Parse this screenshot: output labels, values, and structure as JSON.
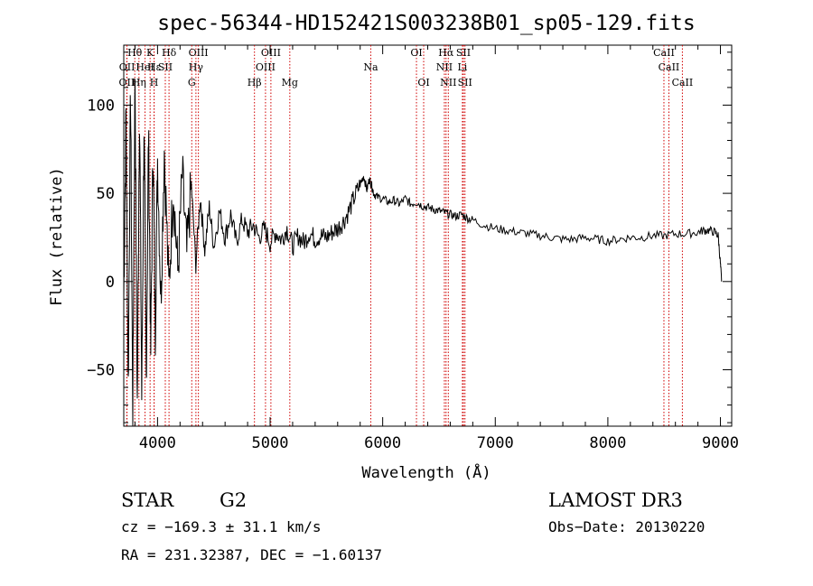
{
  "chart_data": {
    "type": "line",
    "title": "spec-56344-HD152421S003238B01_sp05-129.fits",
    "xlabel": "Wavelength (Å)",
    "ylabel": "Flux (relative)",
    "xlim": [
      3700,
      9100
    ],
    "ylim": [
      -82,
      134
    ],
    "xticks": [
      4000,
      5000,
      6000,
      7000,
      8000,
      9000
    ],
    "yticks": [
      -50,
      0,
      50,
      100
    ],
    "tick_labels_y": [
      "−50",
      "0",
      "50",
      "100"
    ],
    "series": [
      {
        "name": "spectrum",
        "x": [
          3700,
          3720,
          3740,
          3760,
          3780,
          3800,
          3820,
          3840,
          3860,
          3880,
          3900,
          3920,
          3940,
          3960,
          3980,
          4000,
          4030,
          4060,
          4100,
          4140,
          4180,
          4220,
          4260,
          4300,
          4340,
          4380,
          4420,
          4460,
          4500,
          4550,
          4600,
          4650,
          4700,
          4750,
          4800,
          4850,
          4900,
          4950,
          5000,
          5050,
          5100,
          5150,
          5200,
          5250,
          5300,
          5350,
          5400,
          5450,
          5500,
          5550,
          5600,
          5650,
          5700,
          5750,
          5800,
          5830,
          5860,
          5880,
          5900,
          5920,
          5950,
          6000,
          6050,
          6100,
          6150,
          6200,
          6250,
          6300,
          6350,
          6400,
          6450,
          6500,
          6550,
          6600,
          6650,
          6700,
          6750,
          6800,
          6900,
          7000,
          7100,
          7200,
          7300,
          7400,
          7500,
          7600,
          7700,
          7800,
          7900,
          8000,
          8100,
          8200,
          8300,
          8400,
          8500,
          8600,
          8700,
          8800,
          8850,
          8900,
          8950,
          8980,
          9000,
          9010
        ],
        "y": [
          -10,
          95,
          -60,
          110,
          -75,
          120,
          -70,
          100,
          -65,
          90,
          -55,
          85,
          -40,
          80,
          -30,
          70,
          -10,
          75,
          -5,
          55,
          5,
          60,
          15,
          55,
          10,
          48,
          18,
          42,
          20,
          40,
          25,
          38,
          22,
          35,
          28,
          32,
          25,
          30,
          22,
          28,
          24,
          30,
          20,
          26,
          22,
          28,
          24,
          26,
          25,
          28,
          30,
          34,
          40,
          48,
          55,
          60,
          52,
          58,
          55,
          50,
          48,
          47,
          45,
          46,
          44,
          47,
          44,
          45,
          43,
          42,
          41,
          40,
          39,
          38,
          37,
          38,
          36,
          35,
          32,
          30,
          29,
          28,
          27,
          26,
          25,
          24,
          24,
          25,
          24,
          23,
          24,
          25,
          25,
          26,
          26,
          27,
          27,
          28,
          29,
          29,
          28,
          26,
          10,
          0
        ]
      }
    ],
    "lines": [
      {
        "label": "Hθ",
        "x": 3798,
        "row": 1
      },
      {
        "label": "OII",
        "x": 3727,
        "row": 3
      },
      {
        "label": "Hη",
        "x": 3835,
        "row": 3
      },
      {
        "label": "K",
        "x": 3934,
        "row": 1
      },
      {
        "label": "H",
        "x": 3969,
        "row": 3
      },
      {
        "label": "Hε",
        "x": 3970,
        "row": 2
      },
      {
        "label": "OII",
        "x": 3729,
        "row": 2
      },
      {
        "label": "HeI",
        "x": 3889,
        "row": 2
      },
      {
        "label": "SII",
        "x": 4069,
        "row": 2
      },
      {
        "label": "Hδ",
        "x": 4102,
        "row": 1
      },
      {
        "label": "OIII",
        "x": 4363,
        "row": 1
      },
      {
        "label": "Hγ",
        "x": 4341,
        "row": 2
      },
      {
        "label": "G",
        "x": 4304,
        "row": 3
      },
      {
        "label": "Hβ",
        "x": 4861,
        "row": 3
      },
      {
        "label": "OIII",
        "x": 4959,
        "row": 2
      },
      {
        "label": "OIII",
        "x": 5007,
        "row": 1
      },
      {
        "label": "Mg",
        "x": 5175,
        "row": 3
      },
      {
        "label": "Na",
        "x": 5894,
        "row": 2
      },
      {
        "label": "OI",
        "x": 6300,
        "row": 1
      },
      {
        "label": "OI",
        "x": 6364,
        "row": 3
      },
      {
        "label": "Hα",
        "x": 6563,
        "row": 1
      },
      {
        "label": "NII",
        "x": 6548,
        "row": 2
      },
      {
        "label": "NII",
        "x": 6583,
        "row": 3
      },
      {
        "label": "SII",
        "x": 6717,
        "row": 1
      },
      {
        "label": "Li",
        "x": 6708,
        "row": 2
      },
      {
        "label": "SII",
        "x": 6731,
        "row": 3
      },
      {
        "label": "CaII",
        "x": 8498,
        "row": 1
      },
      {
        "label": "CaII",
        "x": 8542,
        "row": 2
      },
      {
        "label": "CaII",
        "x": 8662,
        "row": 3
      }
    ]
  },
  "info": {
    "object_type": "STAR",
    "subclass": "G2",
    "survey": "LAMOST DR3",
    "cz": "cz = −169.3 ± 31.1 km/s",
    "obs_date": "Obs−Date: 20130220",
    "coords": "RA = 231.32387, DEC =  −1.60137"
  }
}
